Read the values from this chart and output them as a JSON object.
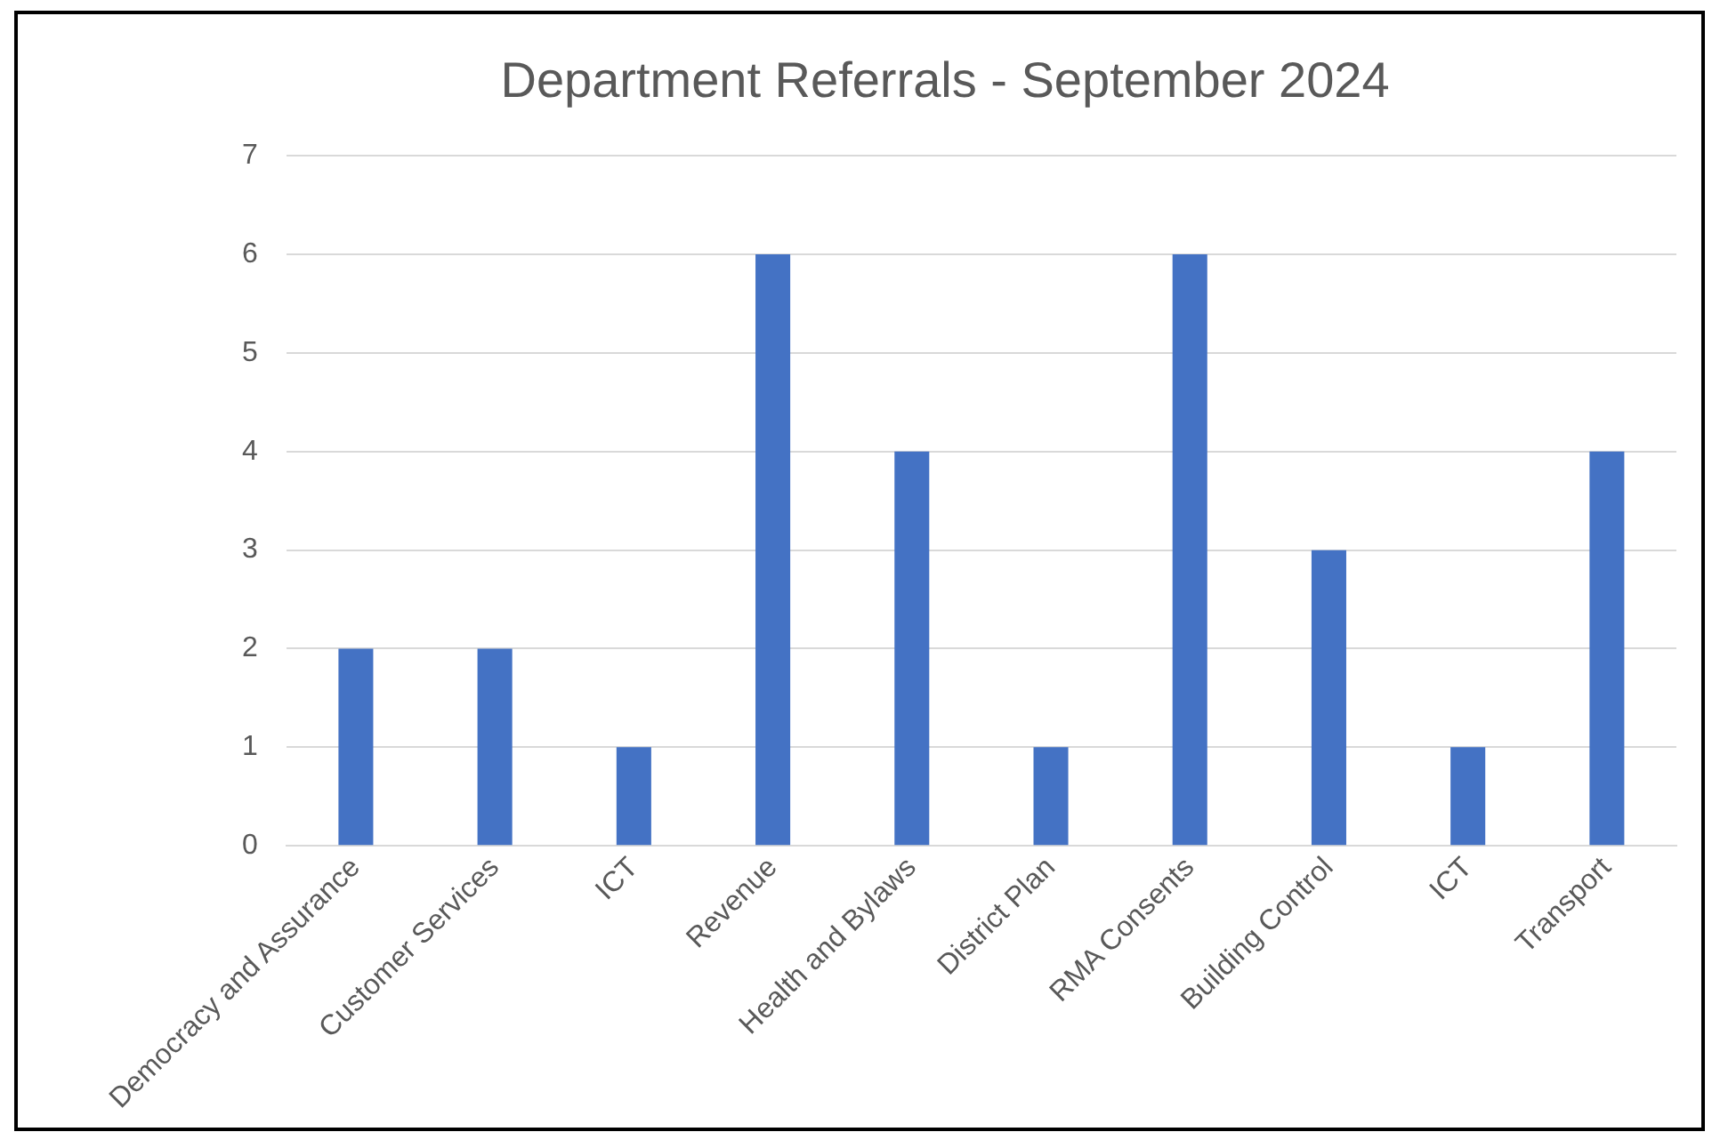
{
  "chart_data": {
    "type": "bar",
    "title": "Department Referrals - September 2024",
    "categories": [
      "Democracy and Assurance",
      "Customer Services",
      "ICT",
      "Revenue",
      "Health and Bylaws",
      "District Plan",
      "RMA Consents",
      "Building Control",
      "ICT",
      "Transport"
    ],
    "values": [
      2,
      2,
      1,
      6,
      4,
      1,
      6,
      3,
      1,
      4
    ],
    "color": "#4472c4",
    "ylim": [
      0,
      7
    ],
    "yticks": [
      0,
      1,
      2,
      3,
      4,
      5,
      6,
      7
    ],
    "grid": "y",
    "legend": false
  }
}
